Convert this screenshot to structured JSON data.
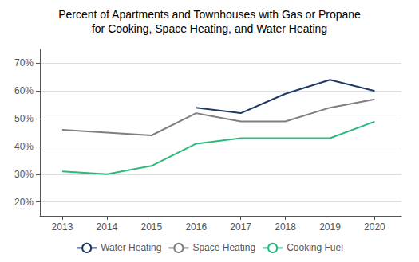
{
  "chart_data": {
    "type": "line",
    "title": "Percent of Apartments and Townhouses with Gas or Propane",
    "subtitle": "for Cooking, Space Heating, and Water Heating",
    "x": [
      2013,
      2014,
      2015,
      2016,
      2017,
      2018,
      2019,
      2020
    ],
    "series": [
      {
        "name": "Water Heating",
        "color": "#1f3864",
        "values": [
          null,
          null,
          null,
          54,
          52,
          59,
          64,
          60
        ]
      },
      {
        "name": "Space Heating",
        "color": "#7f7f7f",
        "values": [
          46,
          45,
          44,
          52,
          49,
          49,
          54,
          57
        ]
      },
      {
        "name": "Cooking Fuel",
        "color": "#2db87d",
        "values": [
          31,
          30,
          33,
          41,
          43,
          43,
          43,
          49
        ]
      }
    ],
    "xlim": [
      2012.5,
      2020.6
    ],
    "xticks": [
      2013,
      2014,
      2015,
      2016,
      2017,
      2018,
      2019,
      2020
    ],
    "ylim": [
      15,
      75
    ],
    "yticks": [
      {
        "value": 20,
        "label": "20%"
      },
      {
        "value": 30,
        "label": "30%"
      },
      {
        "value": 40,
        "label": "40%"
      },
      {
        "value": 50,
        "label": "50%"
      },
      {
        "value": 60,
        "label": "60%"
      },
      {
        "value": 70,
        "label": "70%"
      }
    ],
    "grid": true,
    "legend": "bottom"
  }
}
